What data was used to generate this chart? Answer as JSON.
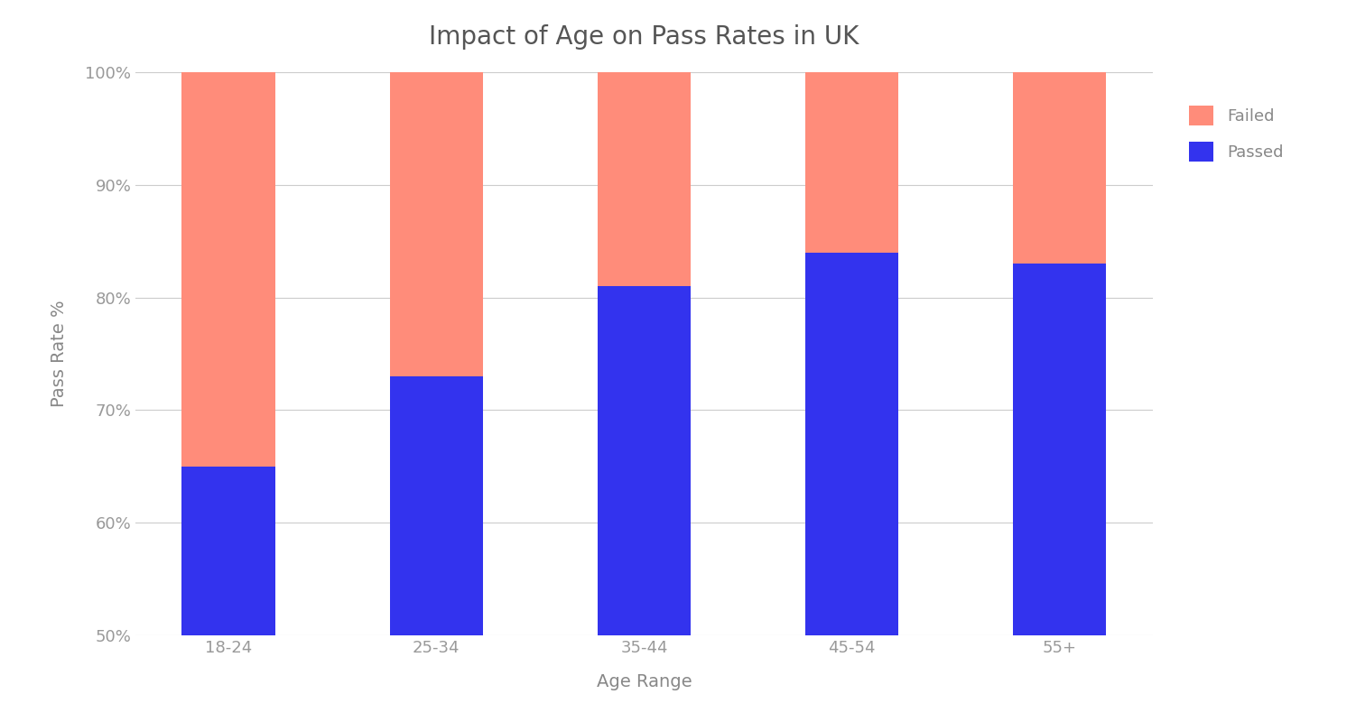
{
  "categories": [
    "18-24",
    "25-34",
    "35-44",
    "45-54",
    "55+"
  ],
  "passed_values": [
    65,
    73,
    81,
    84,
    83
  ],
  "failed_values": [
    35,
    27,
    19,
    16,
    17
  ],
  "passed_color": "#3333EE",
  "failed_color": "#FF8C7A",
  "title": "Impact of Age on Pass Rates in UK",
  "xlabel": "Age Range",
  "ylabel": "Pass Rate %",
  "ylim_min": 50,
  "ylim_max": 100,
  "yticks": [
    50,
    60,
    70,
    80,
    90,
    100
  ],
  "legend_labels": [
    "Failed",
    "Passed"
  ],
  "background_color": "#FFFFFF",
  "grid_color": "#CCCCCC",
  "title_color": "#555555",
  "label_color": "#888888",
  "tick_color": "#999999",
  "bar_width": 0.45,
  "bar_bottom": 50
}
